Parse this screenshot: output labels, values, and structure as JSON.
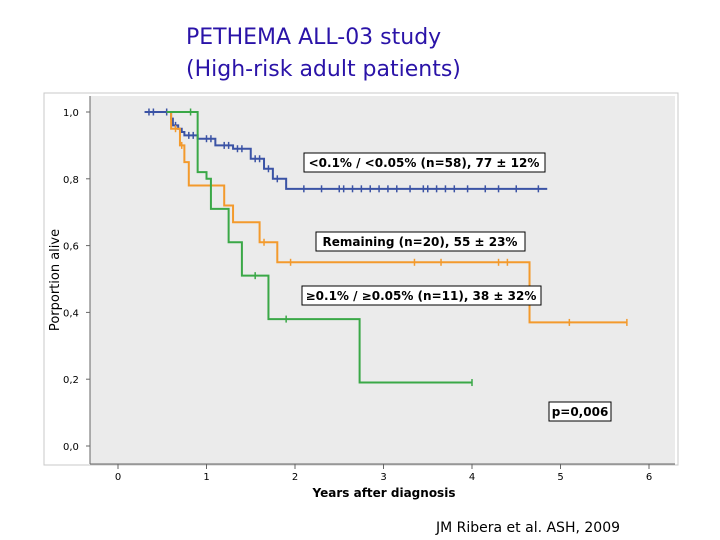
{
  "slide": {
    "title_line1": "PETHEMA ALL-03 study",
    "title_line2": "(High-risk adult patients)",
    "citation": "JM Ribera et al. ASH, 2009"
  },
  "chart_data": {
    "type": "line",
    "subtype": "kaplan-meier step",
    "xlabel": "Years after diagnosis",
    "ylabel": "Porportion alive",
    "xlim": [
      0,
      6
    ],
    "ylim": [
      0,
      1
    ],
    "xticks": [
      0,
      1,
      2,
      3,
      4,
      5,
      6
    ],
    "xtick_labels": [
      "0",
      "1",
      "2",
      "3",
      "4",
      "5",
      "6"
    ],
    "yticks": [
      0,
      0.2,
      0.4,
      0.6,
      0.8,
      1.0
    ],
    "ytick_labels": [
      "0,0",
      "0,2",
      "0,4",
      "0,6",
      "0,8",
      "1,0"
    ],
    "grid": false,
    "background": "#ebebeb",
    "series": [
      {
        "name": "<0.1% / <0.05% (n=58), 77 ± 12%",
        "color": "#3b53a5",
        "steps": [
          [
            0.3,
            1.0
          ],
          [
            0.6,
            0.98
          ],
          [
            0.62,
            0.96
          ],
          [
            0.68,
            0.95
          ],
          [
            0.72,
            0.94
          ],
          [
            0.75,
            0.93
          ],
          [
            0.9,
            0.92
          ],
          [
            1.1,
            0.9
          ],
          [
            1.3,
            0.89
          ],
          [
            1.5,
            0.86
          ],
          [
            1.65,
            0.83
          ],
          [
            1.75,
            0.8
          ],
          [
            1.9,
            0.77
          ],
          [
            4.85,
            0.77
          ]
        ],
        "censor_x": [
          0.35,
          0.4,
          0.55,
          0.65,
          0.8,
          0.85,
          1.0,
          1.05,
          1.2,
          1.25,
          1.35,
          1.4,
          1.55,
          1.6,
          1.7,
          1.8,
          2.1,
          2.3,
          2.5,
          2.55,
          2.65,
          2.75,
          2.85,
          2.95,
          3.05,
          3.15,
          3.3,
          3.45,
          3.5,
          3.6,
          3.7,
          3.8,
          3.95,
          4.15,
          4.3,
          4.5,
          4.75
        ],
        "label_box": "<0.1% / <0.05% (n=58), 77 ± 12%"
      },
      {
        "name": "Remaining (n=20), 55 ± 23%",
        "color": "#f39a2c",
        "steps": [
          [
            0.55,
            1.0
          ],
          [
            0.6,
            0.95
          ],
          [
            0.7,
            0.9
          ],
          [
            0.75,
            0.85
          ],
          [
            0.8,
            0.78
          ],
          [
            1.2,
            0.72
          ],
          [
            1.3,
            0.67
          ],
          [
            1.6,
            0.61
          ],
          [
            1.8,
            0.55
          ],
          [
            4.65,
            0.55
          ],
          [
            4.65,
            0.37
          ],
          [
            5.75,
            0.37
          ]
        ],
        "censor_x": [
          0.65,
          0.72,
          1.65,
          1.95,
          3.35,
          3.65,
          4.3,
          4.4,
          5.1,
          5.75
        ],
        "label_box": "Remaining (n=20), 55 ± 23%"
      },
      {
        "name": "≥0.1% / ≥0.05% (n=11), 38 ± 32%",
        "color": "#3aa847",
        "steps": [
          [
            0.55,
            1.0
          ],
          [
            0.75,
            1.0
          ],
          [
            0.9,
            0.82
          ],
          [
            1.0,
            0.8
          ],
          [
            1.05,
            0.71
          ],
          [
            1.25,
            0.61
          ],
          [
            1.4,
            0.51
          ],
          [
            1.7,
            0.38
          ],
          [
            2.7,
            0.38
          ],
          [
            2.73,
            0.19
          ],
          [
            4.0,
            0.19
          ]
        ],
        "censor_x": [
          0.82,
          1.55,
          1.9,
          4.0
        ],
        "label_box": "≥0.1% / ≥0.05% (n=11), 38 ± 32%"
      }
    ],
    "annotations": {
      "p_value": "p=0,006"
    }
  }
}
